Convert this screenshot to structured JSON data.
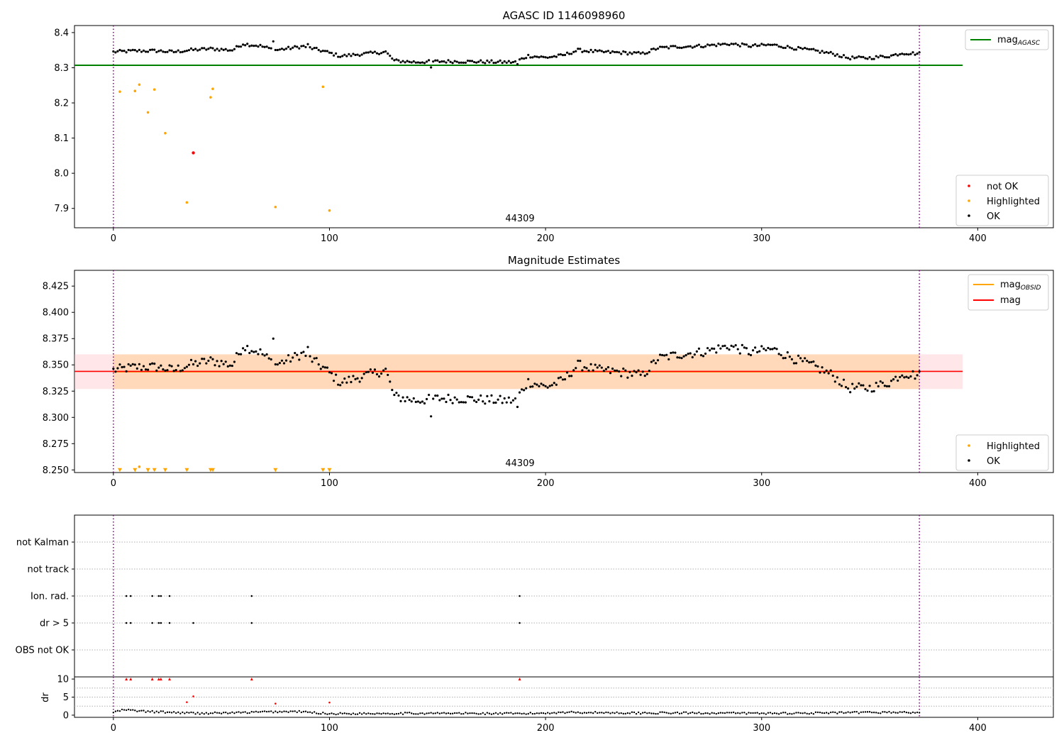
{
  "chart_data": [
    {
      "type": "scatter",
      "title": "AGASC ID 1146098960",
      "xlabel": "",
      "ylabel": "",
      "xlim": [
        -18,
        435
      ],
      "ylim": [
        7.845,
        8.42
      ],
      "xticks": [
        0,
        100,
        200,
        300,
        400
      ],
      "yticks": [
        7.9,
        8.0,
        8.1,
        8.2,
        8.3,
        8.4
      ],
      "ytick_labels": [
        "7.9",
        "8.0",
        "8.1",
        "8.2",
        "8.3",
        "8.4"
      ],
      "annotation": "44309",
      "vlines": [
        0,
        373
      ],
      "hlines": [
        {
          "name": "mag_AGASC",
          "y": 8.307,
          "x0": -18,
          "x1": 393,
          "color": "#008000"
        }
      ],
      "series": [
        {
          "name": "not OK",
          "color": "#ff0000",
          "points": [
            [
              37,
              8.058
            ]
          ]
        },
        {
          "name": "Highlighted",
          "color": "#ffa500",
          "points": [
            [
              3,
              8.232
            ],
            [
              10,
              8.234
            ],
            [
              12,
              8.252
            ],
            [
              16,
              8.173
            ],
            [
              19,
              8.238
            ],
            [
              24,
              8.114
            ],
            [
              34,
              7.917
            ],
            [
              45,
              8.216
            ],
            [
              46,
              8.24
            ],
            [
              75,
              7.904
            ],
            [
              97,
              8.246
            ],
            [
              100,
              7.894
            ]
          ]
        },
        {
          "name": "OK",
          "color": "#000000",
          "curve": "mag_series"
        }
      ],
      "legend": {
        "position": "lower-right",
        "entries": [
          "not OK",
          "Highlighted",
          "OK"
        ]
      },
      "line_legend": {
        "position": "upper-right",
        "entries": [
          {
            "label_main": "mag",
            "label_sub": "AGASC",
            "color": "#008000"
          }
        ]
      }
    },
    {
      "type": "scatter",
      "title": "Magnitude Estimates",
      "xlabel": "",
      "ylabel": "",
      "xlim": [
        -18,
        435
      ],
      "ylim": [
        8.2475,
        8.44
      ],
      "xticks": [
        0,
        100,
        200,
        300,
        400
      ],
      "yticks": [
        8.25,
        8.275,
        8.3,
        8.325,
        8.35,
        8.375,
        8.4,
        8.425
      ],
      "ytick_labels": [
        "8.250",
        "8.275",
        "8.300",
        "8.325",
        "8.350",
        "8.375",
        "8.400",
        "8.425"
      ],
      "annotation": "44309",
      "vlines": [
        0,
        373
      ],
      "bands": [
        {
          "y0": 8.327,
          "y1": 8.36,
          "x0": -18,
          "x1": 393,
          "color": "#ffb6c1"
        },
        {
          "y0": 8.327,
          "y1": 8.36,
          "x0": 0,
          "x1": 373,
          "color": "#ffa500"
        }
      ],
      "hlines": [
        {
          "name": "mag_OBSID",
          "y": 8.3435,
          "x0": 0,
          "x1": 373,
          "color": "#ffa500"
        },
        {
          "name": "mag",
          "y": 8.3438,
          "x0": -18,
          "x1": 393,
          "color": "#ff0000"
        }
      ],
      "series": [
        {
          "name": "Highlighted",
          "color": "#ffa500",
          "marker": "triangle-down",
          "points": [
            [
              3,
              8.249
            ],
            [
              10,
              8.249
            ],
            [
              12,
              8.253
            ],
            [
              16,
              8.249
            ],
            [
              19,
              8.249
            ],
            [
              24,
              8.249
            ],
            [
              34,
              8.249
            ],
            [
              45,
              8.249
            ],
            [
              46,
              8.249
            ],
            [
              75,
              8.249
            ],
            [
              97,
              8.249
            ],
            [
              100,
              8.249
            ]
          ]
        },
        {
          "name": "OK",
          "color": "#000000",
          "curve": "mag_series"
        }
      ],
      "legend": {
        "position": "lower-right",
        "entries": [
          "Highlighted",
          "OK"
        ]
      },
      "line_legend": {
        "position": "upper-right",
        "entries": [
          {
            "label_main": "mag",
            "label_sub": "OBSID",
            "color": "#ffa500"
          },
          {
            "label_main": "mag",
            "label_sub": "",
            "color": "#ff0000"
          }
        ]
      }
    },
    {
      "type": "scatter",
      "title": "",
      "xlim": [
        -18,
        435
      ],
      "categories": [
        "OBS not OK",
        "dr > 5",
        "Ion. rad.",
        "not track",
        "not Kalman"
      ],
      "vlines": [
        0,
        373
      ],
      "series": [
        {
          "name": "Ion. rad.",
          "color": "#000000",
          "points": [
            [
              6,
              2
            ],
            [
              8,
              2
            ],
            [
              18,
              2
            ],
            [
              21,
              2
            ],
            [
              22,
              2
            ],
            [
              26,
              2
            ],
            [
              64,
              2
            ],
            [
              188,
              2
            ]
          ]
        },
        {
          "name": "dr > 5",
          "color": "#000000",
          "points": [
            [
              6,
              1
            ],
            [
              8,
              1
            ],
            [
              18,
              1
            ],
            [
              21,
              1
            ],
            [
              22,
              1
            ],
            [
              26,
              1
            ],
            [
              37,
              1
            ],
            [
              64,
              1
            ],
            [
              188,
              1
            ]
          ]
        }
      ]
    },
    {
      "type": "scatter",
      "title": "",
      "ylabel": "dr",
      "xlim": [
        -18,
        435
      ],
      "ylim": [
        -0.6,
        10.6
      ],
      "xticks": [
        0,
        100,
        200,
        300,
        400
      ],
      "yticks": [
        0,
        5,
        10
      ],
      "vlines": [
        0,
        373
      ],
      "series": [
        {
          "name": "dr",
          "color": "#000000",
          "curve": "dr_series"
        },
        {
          "name": "dr > 5",
          "color": "#ff0000",
          "marker": "triangle-up",
          "points": [
            [
              6,
              10
            ],
            [
              8,
              10
            ],
            [
              18,
              10
            ],
            [
              21,
              10
            ],
            [
              22,
              10
            ],
            [
              26,
              10
            ],
            [
              64,
              10
            ],
            [
              188,
              10
            ]
          ]
        },
        {
          "name": "dr high",
          "color": "#ff0000",
          "points": [
            [
              34,
              3.6
            ],
            [
              37,
              5.2
            ],
            [
              75,
              3.2
            ],
            [
              100,
              3.5
            ]
          ]
        }
      ]
    }
  ],
  "mag_series": {
    "x_start": 0,
    "x_end": 373,
    "x_step": 1,
    "description_note": "",
    "anchors": [
      [
        0,
        8.345
      ],
      [
        10,
        8.348
      ],
      [
        20,
        8.348
      ],
      [
        28,
        8.345
      ],
      [
        35,
        8.35
      ],
      [
        45,
        8.354
      ],
      [
        55,
        8.35
      ],
      [
        60,
        8.368
      ],
      [
        68,
        8.362
      ],
      [
        75,
        8.35
      ],
      [
        88,
        8.361
      ],
      [
        98,
        8.346
      ],
      [
        105,
        8.333
      ],
      [
        115,
        8.339
      ],
      [
        126,
        8.345
      ],
      [
        130,
        8.32
      ],
      [
        140,
        8.316
      ],
      [
        150,
        8.318
      ],
      [
        160,
        8.318
      ],
      [
        170,
        8.317
      ],
      [
        180,
        8.316
      ],
      [
        186,
        8.316
      ],
      [
        192,
        8.334
      ],
      [
        200,
        8.329
      ],
      [
        208,
        8.335
      ],
      [
        215,
        8.35
      ],
      [
        225,
        8.345
      ],
      [
        235,
        8.343
      ],
      [
        245,
        8.34
      ],
      [
        252,
        8.356
      ],
      [
        262,
        8.36
      ],
      [
        272,
        8.362
      ],
      [
        285,
        8.368
      ],
      [
        295,
        8.362
      ],
      [
        305,
        8.365
      ],
      [
        315,
        8.356
      ],
      [
        325,
        8.348
      ],
      [
        333,
        8.34
      ],
      [
        340,
        8.328
      ],
      [
        350,
        8.328
      ],
      [
        360,
        8.334
      ],
      [
        365,
        8.342
      ],
      [
        373,
        8.34
      ]
    ],
    "outliers": [
      [
        147,
        8.301
      ],
      [
        187,
        8.31
      ],
      [
        74,
        8.375
      ],
      [
        90,
        8.367
      ]
    ]
  },
  "dr_series": {
    "x_start": 0,
    "x_end": 373,
    "x_step": 1,
    "anchors": [
      [
        0,
        0.8
      ],
      [
        5,
        1.5
      ],
      [
        15,
        1.0
      ],
      [
        30,
        0.7
      ],
      [
        40,
        0.5
      ],
      [
        60,
        0.7
      ],
      [
        70,
        0.9
      ],
      [
        85,
        1.0
      ],
      [
        100,
        0.4
      ],
      [
        130,
        0.5
      ],
      [
        160,
        0.5
      ],
      [
        190,
        0.4
      ],
      [
        210,
        0.8
      ],
      [
        240,
        0.6
      ],
      [
        270,
        0.6
      ],
      [
        300,
        0.5
      ],
      [
        330,
        0.6
      ],
      [
        360,
        0.8
      ],
      [
        373,
        0.7
      ]
    ]
  }
}
